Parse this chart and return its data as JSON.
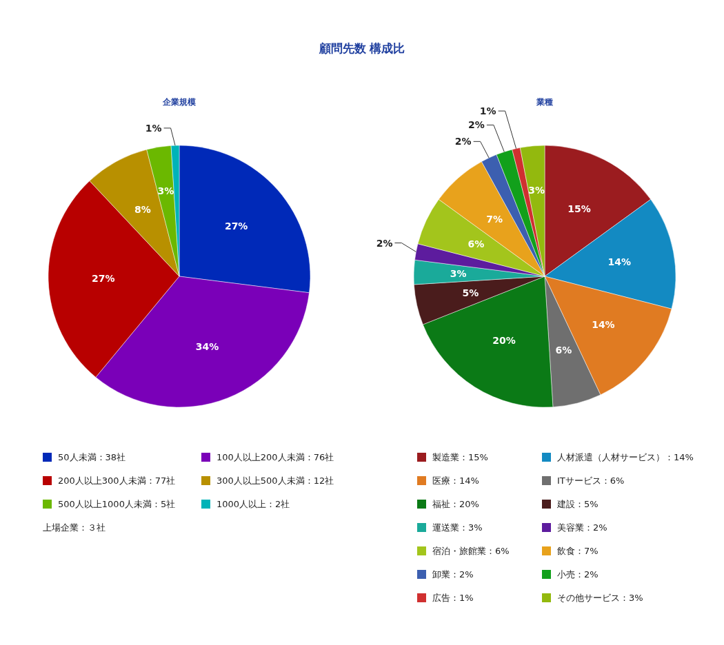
{
  "chart_data": [
    {
      "type": "pie",
      "title": "顧問先数 構成比",
      "subtitle": "企業規模",
      "legend": "bottom",
      "categories": [
        "50人未満：38社",
        "100人以上200人未満：76社",
        "200人以上300人未満：77社",
        "300人以上500人未満：12社",
        "500人以上1000人未満：5社",
        "1000人以上：2社"
      ],
      "values": [
        27,
        34,
        27,
        8,
        3,
        1
      ],
      "value_labels": [
        "27%",
        "34%",
        "27%",
        "8%",
        "3%",
        "1%"
      ],
      "colors": [
        "#0029b8",
        "#7a00b8",
        "#b80000",
        "#b89000",
        "#6bb800",
        "#00b3b8"
      ],
      "annotations": [
        "上場企業：３社"
      ]
    },
    {
      "type": "pie",
      "subtitle": "業種",
      "legend": "bottom",
      "categories": [
        "製造業：15%",
        "人材派遣（人材サービス）：14%",
        "医療：14%",
        "ITサービス：6%",
        "福祉：20%",
        "建設：5%",
        "運送業：3%",
        "美容業：2%",
        "宿泊・旅館業：6%",
        "飲食：7%",
        "卸業：2%",
        "小売：2%",
        "広告：1%",
        "その他サービス：3%"
      ],
      "values": [
        15,
        14,
        14,
        6,
        20,
        5,
        3,
        2,
        6,
        7,
        2,
        2,
        1,
        3
      ],
      "value_labels": [
        "15%",
        "14%",
        "14%",
        "6%",
        "20%",
        "5%",
        "3%",
        "2%",
        "6%",
        "7%",
        "2%",
        "2%",
        "1%",
        "3%"
      ],
      "colors": [
        "#9b1c1f",
        "#138ac2",
        "#e07b22",
        "#6f6f6f",
        "#0b7a16",
        "#4a1c1c",
        "#1aaa9a",
        "#5d1c9e",
        "#a3c51c",
        "#e8a21c",
        "#3c5fb0",
        "#12a01b",
        "#d03030",
        "#93b90e"
      ]
    }
  ]
}
